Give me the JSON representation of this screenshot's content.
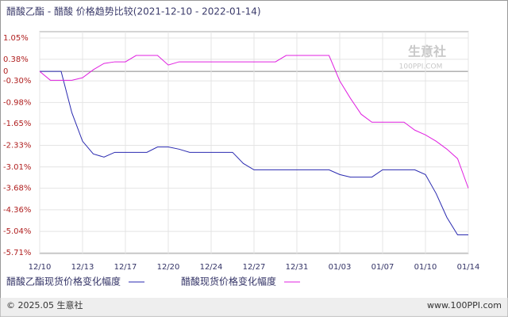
{
  "chart_data": {
    "type": "line",
    "title": "醋酸乙酯 - 醋酸  价格趋势比较(2021-12-10 - 2022-01-14)",
    "categories": [
      "12/10",
      null,
      null,
      null,
      "12/13",
      null,
      null,
      null,
      "12/17",
      null,
      null,
      null,
      "12/20",
      null,
      null,
      null,
      "12/24",
      null,
      null,
      null,
      "12/27",
      null,
      null,
      null,
      "12/31",
      null,
      null,
      null,
      "01/03",
      null,
      null,
      null,
      "01/07",
      null,
      null,
      null,
      "01/10",
      null,
      null,
      null,
      "01/14"
    ],
    "series": [
      {
        "name": "醋酸乙酯现货价格变化幅度",
        "color": "#2a2ab0",
        "values": [
          0,
          0,
          0,
          -1.3,
          -2.2,
          -2.6,
          -2.7,
          -2.55,
          -2.55,
          -2.55,
          -2.55,
          -2.38,
          -2.38,
          -2.45,
          -2.55,
          -2.55,
          -2.55,
          -2.55,
          -2.55,
          -2.9,
          -3.1,
          -3.1,
          -3.1,
          -3.1,
          -3.1,
          -3.1,
          -3.1,
          -3.1,
          -3.25,
          -3.33,
          -3.33,
          -3.33,
          -3.1,
          -3.1,
          -3.1,
          -3.1,
          -3.25,
          -3.85,
          -4.6,
          -5.15,
          -5.15
        ]
      },
      {
        "name": "醋酸现货价格变化幅度",
        "color": "#e020e0",
        "values": [
          0,
          -0.28,
          -0.28,
          -0.28,
          -0.2,
          0.05,
          0.25,
          0.3,
          0.3,
          0.5,
          0.5,
          0.5,
          0.2,
          0.3,
          0.3,
          0.3,
          0.3,
          0.3,
          0.3,
          0.3,
          0.3,
          0.3,
          0.3,
          0.5,
          0.5,
          0.5,
          0.5,
          0.5,
          -0.3,
          -0.85,
          -1.35,
          -1.6,
          -1.6,
          -1.6,
          -1.6,
          -1.85,
          -2.0,
          -2.2,
          -2.45,
          -2.75,
          -3.68
        ]
      }
    ],
    "ylim": [
      -5.71,
      1.05
    ],
    "yticks": [
      {
        "value": 1.05,
        "label": "1.05%"
      },
      {
        "value": 0.38,
        "label": "0.38%"
      },
      0,
      {
        "value": -0.3,
        "label": "-0.30%"
      },
      {
        "value": -0.98,
        "label": "-0.98%"
      },
      {
        "value": -1.65,
        "label": "-1.65%"
      },
      {
        "value": -2.33,
        "label": "-2.33%"
      },
      {
        "value": -3.01,
        "label": "-3.01%"
      },
      {
        "value": -3.68,
        "label": "-3.68%"
      },
      {
        "value": -4.36,
        "label": "-4.36%"
      },
      {
        "value": -5.04,
        "label": "-5.04%"
      },
      {
        "value": -5.71,
        "label": "-5.71%"
      }
    ],
    "grid": true,
    "watermark": {
      "name": "生意社",
      "site": "100PPI.COM"
    },
    "footer": {
      "copyright": "© 2025.05 生意社",
      "site": "www.100PPI.com"
    }
  }
}
